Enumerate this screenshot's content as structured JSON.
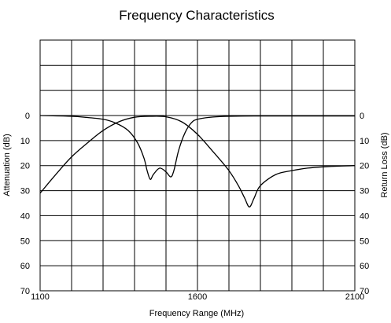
{
  "chart_data": {
    "type": "line",
    "title": "Frequency Characteristics",
    "xlabel": "Frequency Range (MHz)",
    "ylabel_left": "Attenuation (dB)",
    "ylabel_right": "Return Loss (dB)",
    "xlim": [
      1100,
      2100
    ],
    "ylim": [
      0,
      70
    ],
    "y_inverted": true,
    "grid": true,
    "x_ticks": [
      1100,
      1600,
      2100
    ],
    "y_ticks": [
      0,
      10,
      20,
      30,
      40,
      50,
      60,
      70
    ],
    "series": [
      {
        "axis": "left",
        "x": [
          1100,
          1150,
          1200,
          1250,
          1300,
          1350,
          1400,
          1450,
          1500,
          1550,
          1600,
          1650,
          1700,
          1730,
          1750,
          1765,
          1780,
          1800,
          1850,
          1900,
          1950,
          2000,
          2050,
          2100
        ],
        "values": [
          31,
          23.5,
          16.5,
          11,
          6,
          2.5,
          0.7,
          0.3,
          0.5,
          2.5,
          7.5,
          14.5,
          22,
          28,
          33,
          36.5,
          33,
          28,
          23.5,
          22,
          21,
          20.5,
          20.2,
          20
        ]
      },
      {
        "axis": "right",
        "x": [
          1100,
          1200,
          1250,
          1300,
          1340,
          1380,
          1410,
          1430,
          1440,
          1450,
          1460,
          1480,
          1500,
          1515,
          1525,
          1540,
          1560,
          1580,
          1600,
          1650,
          1700,
          1800,
          2000,
          2100
        ],
        "values": [
          0,
          0.3,
          0.8,
          1.5,
          3,
          6,
          11,
          17,
          22,
          25.5,
          23.5,
          21,
          22.5,
          24.5,
          22,
          14,
          7,
          3,
          1.5,
          0.6,
          0.3,
          0.2,
          0.2,
          0.2
        ]
      }
    ]
  }
}
